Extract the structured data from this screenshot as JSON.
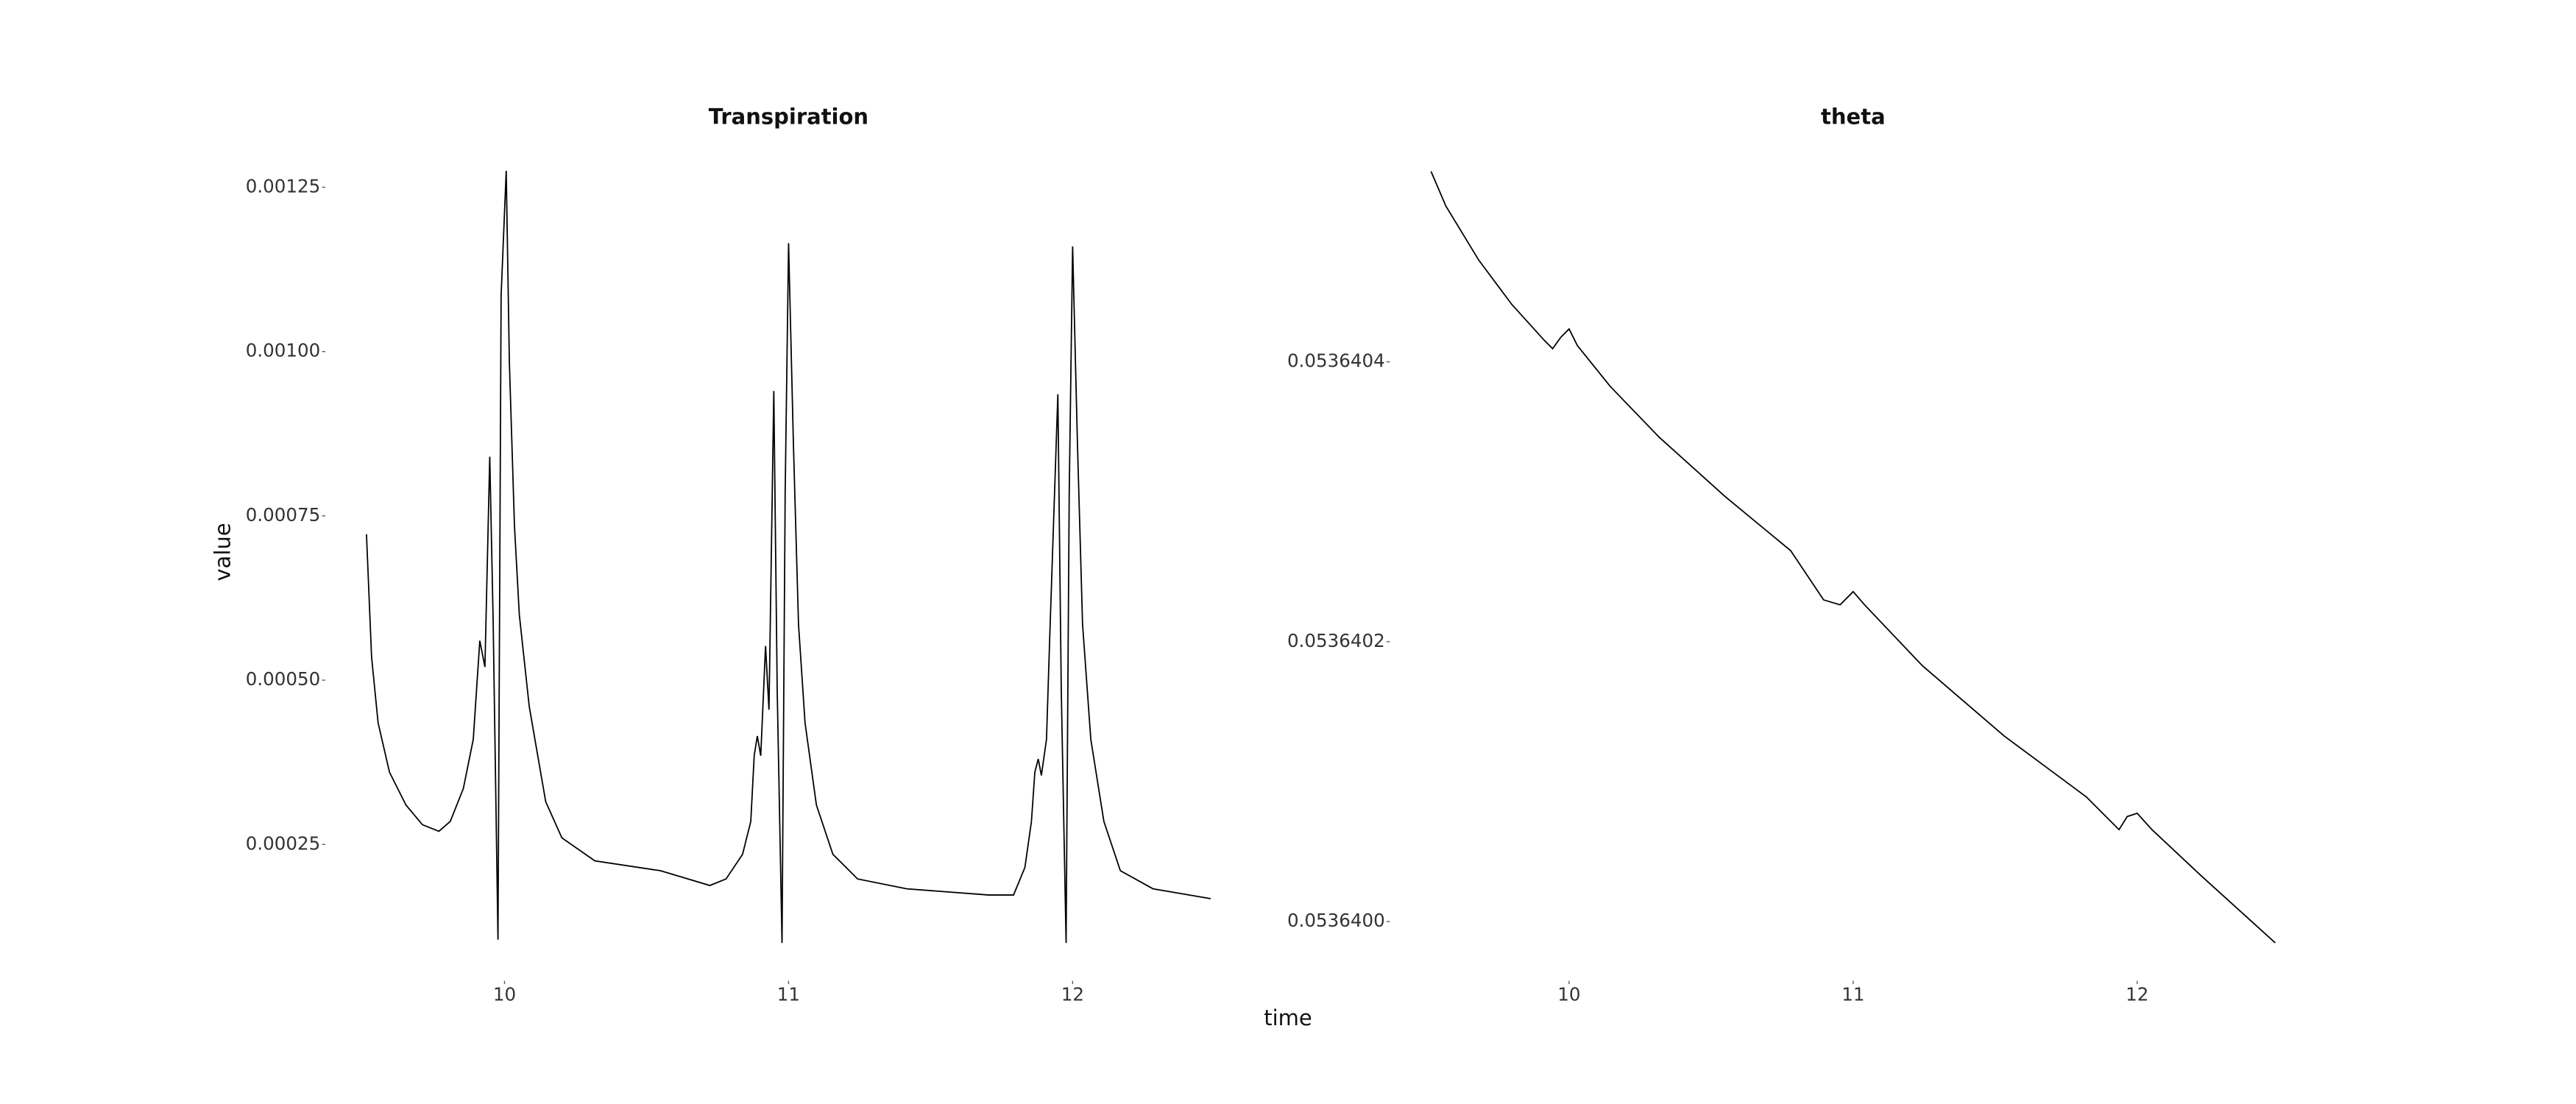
{
  "chart_data": [
    {
      "type": "line",
      "title": "Transpiration",
      "y_label": "value",
      "color": "#000000",
      "x": [
        9.514,
        9.52,
        9.532,
        9.555,
        9.595,
        9.653,
        9.711,
        9.769,
        9.809,
        9.855,
        9.89,
        9.913,
        9.931,
        9.948,
        9.96,
        9.977,
        9.988,
        10.006,
        10.017,
        10.035,
        10.052,
        10.087,
        10.145,
        10.202,
        10.318,
        10.549,
        10.723,
        10.78,
        10.838,
        10.867,
        10.879,
        10.89,
        10.902,
        10.919,
        10.931,
        10.948,
        10.96,
        10.977,
        10.988,
        11.0,
        11.017,
        11.035,
        11.058,
        11.098,
        11.156,
        11.243,
        11.416,
        11.705,
        11.792,
        11.832,
        11.855,
        11.867,
        11.879,
        11.89,
        11.908,
        11.919,
        11.948,
        11.96,
        11.977,
        11.988,
        12.0,
        12.017,
        12.035,
        12.064,
        12.11,
        12.168,
        12.283,
        12.486
      ],
      "values": [
        0.000722,
        0.00066,
        0.000535,
        0.000435,
        0.00036,
        0.00031,
        0.00028,
        0.00027,
        0.000285,
        0.000335,
        0.00041,
        0.00056,
        0.00052,
        0.00084,
        0.00059,
        0.000105,
        0.001085,
        0.001275,
        0.000985,
        0.000735,
        0.0006,
        0.00046,
        0.000315,
        0.00026,
        0.000225,
        0.00021,
        0.0001875,
        0.0001975,
        0.000235,
        0.000285,
        0.000385,
        0.000415,
        0.000385,
        0.000552,
        0.000455,
        0.00094,
        0.000485,
        0.0001,
        0.000785,
        0.001165,
        0.00086,
        0.000585,
        0.000435,
        0.00031,
        0.000235,
        0.0001975,
        0.0001825,
        0.000173,
        0.000173,
        0.000215,
        0.000285,
        0.00036,
        0.00038,
        0.000355,
        0.00041,
        0.00056,
        0.000935,
        0.000485,
        0.0001,
        0.000785,
        0.00116,
        0.00086,
        0.000585,
        0.00041,
        0.000285,
        0.00021,
        0.0001825,
        0.0001675
      ],
      "xlim": [
        9.45,
        12.55
      ],
      "ylim": [
        6e-05,
        0.0013
      ],
      "xticks": [
        10,
        11,
        12
      ],
      "yticks": [
        {
          "value": 0.00025,
          "label": "0.00025"
        },
        {
          "value": 0.0005,
          "label": "0.00050"
        },
        {
          "value": 0.00075,
          "label": "0.00075"
        },
        {
          "value": 0.001,
          "label": "0.00100"
        },
        {
          "value": 0.00125,
          "label": "0.00125"
        }
      ]
    },
    {
      "type": "line",
      "title": "theta",
      "x_label": "time",
      "color": "#000000",
      "x": [
        9.514,
        9.566,
        9.682,
        9.798,
        9.913,
        9.942,
        9.971,
        10.0,
        10.029,
        10.145,
        10.318,
        10.549,
        10.78,
        10.896,
        10.954,
        11.0,
        11.04,
        11.243,
        11.532,
        11.821,
        11.936,
        11.965,
        12.0,
        12.052,
        12.225,
        12.486
      ],
      "values": [
        0.0536405361,
        0.0536405114,
        0.0536404727,
        0.0536404411,
        0.0536404153,
        0.0536404094,
        0.0536404176,
        0.0536404235,
        0.0536404117,
        0.0536403824,
        0.053640346,
        0.0536403038,
        0.0536402651,
        0.0536402299,
        0.0536402264,
        0.0536402358,
        0.0536402264,
        0.053640183,
        0.0536401326,
        0.0536400891,
        0.0536400657,
        0.0536400751,
        0.0536400774,
        0.0536400657,
        0.0536400328,
        0.0536399848
      ],
      "xlim": [
        9.45,
        12.55
      ],
      "ylim": [
        0.05363998,
        0.05364054
      ],
      "xticks": [
        10,
        11,
        12
      ],
      "yticks": [
        {
          "value": 0.05364,
          "label": "0.0536400"
        },
        {
          "value": 0.0536402,
          "label": "0.0536402"
        },
        {
          "value": 0.0536404,
          "label": "0.0536404"
        }
      ]
    }
  ]
}
